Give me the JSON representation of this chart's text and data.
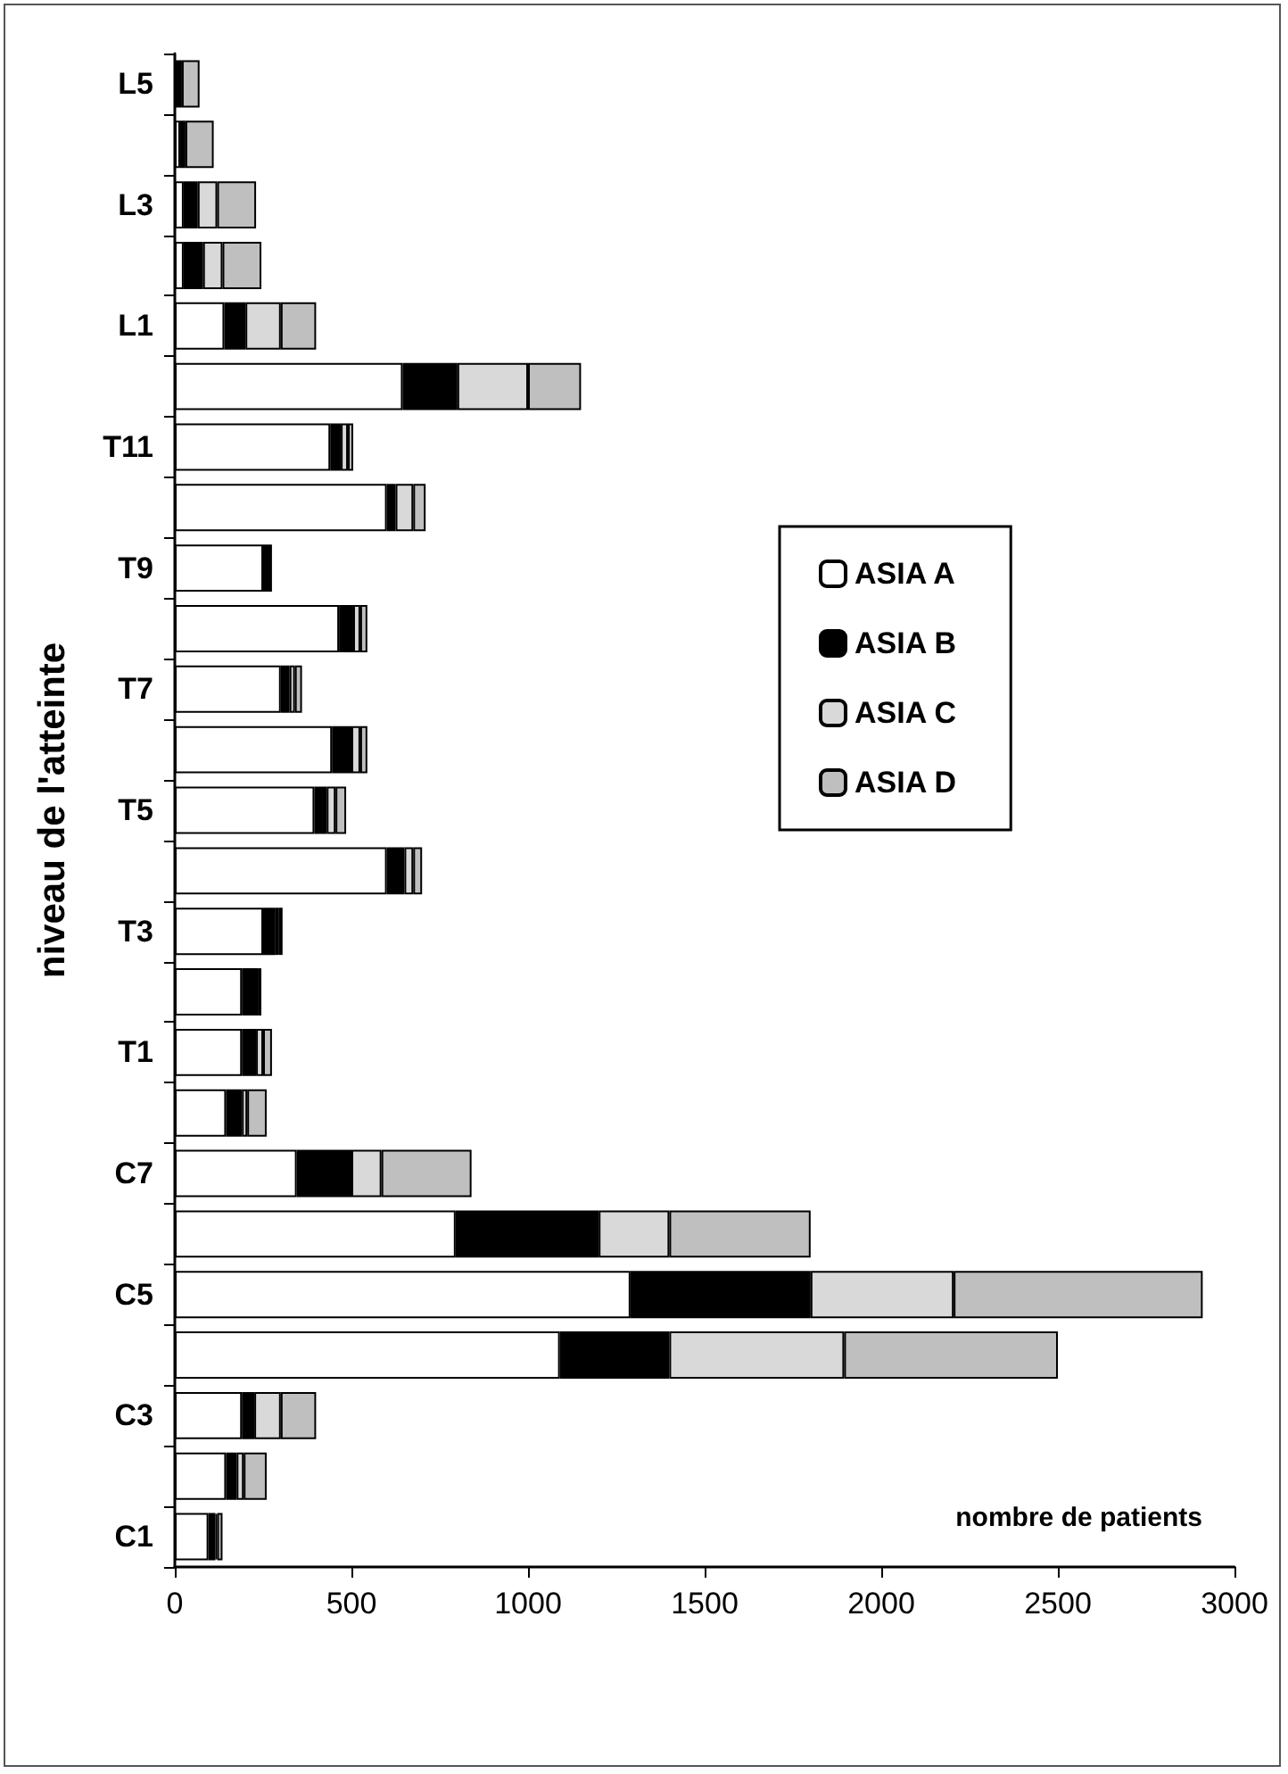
{
  "chart_data": {
    "type": "bar",
    "orientation": "horizontal",
    "stacked": true,
    "xlabel": "nombre de patients",
    "ylabel": "niveau de l'atteinte",
    "categories": [
      "L5",
      null,
      "L3",
      null,
      "L1",
      null,
      "T11",
      null,
      "T9",
      null,
      "T7",
      null,
      "T5",
      null,
      "T3",
      null,
      "T1",
      null,
      "C7",
      null,
      "C5",
      null,
      "C3",
      null,
      "C1"
    ],
    "series": [
      {
        "name": "ASIA A",
        "color": "#ffffff",
        "values": [
          0,
          15,
          25,
          25,
          140,
          645,
          440,
          600,
          250,
          465,
          300,
          445,
          395,
          600,
          250,
          190,
          190,
          145,
          345,
          795,
          1290,
          1090,
          190,
          145,
          95
        ]
      },
      {
        "name": "ASIA B",
        "color": "#000000",
        "values": [
          20,
          15,
          40,
          55,
          60,
          155,
          30,
          25,
          25,
          40,
          25,
          55,
          35,
          50,
          35,
          45,
          40,
          45,
          155,
          405,
          510,
          310,
          35,
          30,
          20
        ]
      },
      {
        "name": "ASIA C",
        "color": "#d9d9d9",
        "values": [
          0,
          0,
          55,
          55,
          100,
          200,
          20,
          50,
          0,
          20,
          15,
          25,
          25,
          25,
          10,
          null,
          20,
          15,
          85,
          200,
          405,
          495,
          75,
          20,
          5
        ]
      },
      {
        "name": "ASIA D",
        "color": "#bfbfbf",
        "values": [
          50,
          80,
          110,
          110,
          100,
          150,
          15,
          35,
          0,
          20,
          20,
          20,
          30,
          25,
          10,
          10,
          25,
          55,
          255,
          400,
          705,
          605,
          100,
          65,
          15
        ]
      }
    ],
    "xlim": [
      0,
      3000
    ],
    "xticks": [
      0,
      500,
      1000,
      1500,
      2000,
      2500,
      3000
    ],
    "grid": false,
    "legend": "right"
  }
}
